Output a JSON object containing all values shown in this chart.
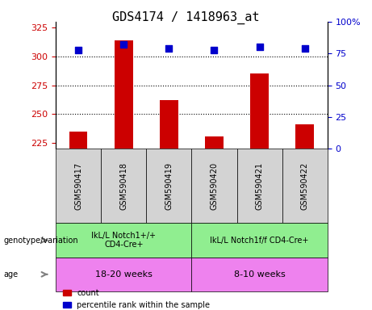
{
  "title": "GDS4174 / 1418963_at",
  "samples": [
    "GSM590417",
    "GSM590418",
    "GSM590419",
    "GSM590420",
    "GSM590421",
    "GSM590422"
  ],
  "counts": [
    235,
    314,
    262,
    231,
    285,
    241
  ],
  "percentile_ranks": [
    78,
    82,
    79,
    78,
    80,
    79
  ],
  "ylim_left": [
    220,
    330
  ],
  "ylim_right": [
    0,
    100
  ],
  "yticks_left": [
    225,
    250,
    275,
    300,
    325
  ],
  "yticks_right": [
    0,
    25,
    50,
    75,
    100
  ],
  "bar_color": "#cc0000",
  "dot_color": "#0000cc",
  "bar_width": 0.4,
  "groups": [
    {
      "label": "IkL/L Notch1+/+\nCD4-Cre+",
      "samples": [
        0,
        1,
        2
      ],
      "color": "#90ee90"
    },
    {
      "label": "IkL/L Notch1f/f CD4-Cre+",
      "samples": [
        3,
        4,
        5
      ],
      "color": "#90ee90"
    }
  ],
  "age_groups": [
    {
      "label": "18-20 weeks",
      "samples": [
        0,
        1,
        2
      ],
      "color": "#ee82ee"
    },
    {
      "label": "8-10 weeks",
      "samples": [
        3,
        4,
        5
      ],
      "color": "#ee82ee"
    }
  ],
  "genotype_label": "genotype/variation",
  "age_label": "age",
  "legend_bar_label": "count",
  "legend_dot_label": "percentile rank within the sample",
  "tick_color_left": "#cc0000",
  "tick_color_right": "#0000cc",
  "grid_color": "#000000",
  "sample_bg_color": "#d3d3d3",
  "plot_bg_color": "#ffffff"
}
